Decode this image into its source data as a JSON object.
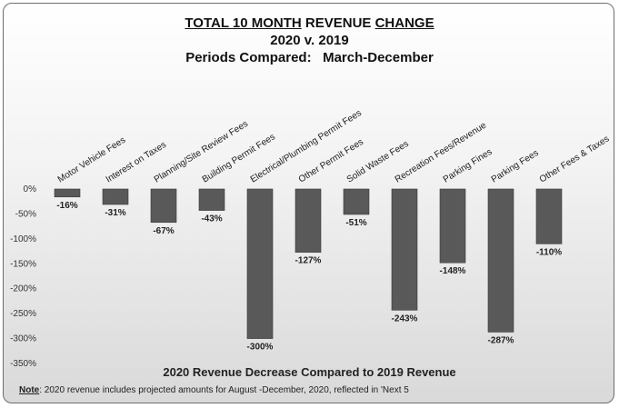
{
  "chart_data": {
    "type": "bar",
    "title": [
      "TOTAL 10 MONTH REVENUE CHANGE",
      "2020 v. 2019",
      "Periods Compared:   March-December"
    ],
    "title_line1_parts": [
      "TOTAL 10 MONTH",
      " REVENUE ",
      "CHANGE"
    ],
    "xlabel": "2020  Revenue Decrease Compared to 2019  Revenue",
    "ylabel": "",
    "ylim": [
      -350,
      0
    ],
    "yticks": [
      0,
      -50,
      -100,
      -150,
      -200,
      -250,
      -300,
      -350
    ],
    "ytick_labels": [
      "0%",
      "-50%",
      "-100%",
      "-150%",
      "-200%",
      "-250%",
      "-300%",
      "-350%"
    ],
    "categories": [
      "Motor Vehicle Fees",
      "Interest on Taxes",
      "Planning/Site Review Fees",
      "Building Permit Fees",
      "Electrical/Plumbing Permit Fees",
      "Other Permit Fees",
      "Solid Waste Fees",
      "Recreation Fees/Revenue",
      "Parking Fines",
      "Parking Fees",
      "Other Fees & Taxes"
    ],
    "values": [
      -16,
      -31,
      -67,
      -43,
      -300,
      -127,
      -51,
      -243,
      -148,
      -287,
      -110
    ],
    "data_labels": [
      "-16%",
      "-31%",
      "-67%",
      "-43%",
      "-300%",
      "-127%",
      "-51%",
      "-243%",
      "-148%",
      "-287%",
      "-110%"
    ],
    "bar_color": "#595959",
    "grid": false,
    "legend": "none"
  },
  "note": {
    "label": "Note",
    "text": ":  2020 revenue includes projected amounts for August -December, 2020, reflected in 'Next 5"
  }
}
